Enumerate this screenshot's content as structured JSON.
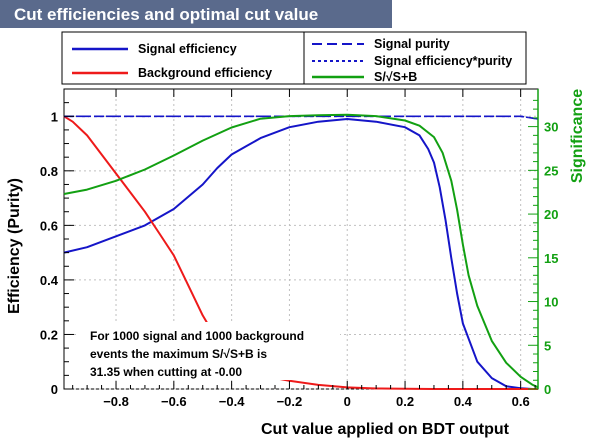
{
  "header": {
    "title": "Cut efficiencies and optimal cut value"
  },
  "legend": {
    "left": [
      "Signal efficiency",
      "Background efficiency"
    ],
    "right": [
      "Signal purity",
      "Signal efficiency*purity",
      "S/√S+B"
    ]
  },
  "annotation": {
    "line1": "For 1000 signal and 1000 background",
    "line2": "events the maximum S/√S+B is",
    "line3": "31.35 when cutting at -0.00"
  },
  "colors": {
    "signal_efficiency": "#1515c8",
    "background_efficiency": "#ee1a1a",
    "significance": "#12a012",
    "title_bar": "#5a6a8c"
  },
  "chart_data": {
    "type": "line",
    "title": "Cut efficiencies and optimal cut value",
    "xlabel": "Cut value applied on BDT output",
    "ylabel": "Efficiency (Purity)",
    "y2label": "Significance",
    "xlim": [
      -0.98,
      0.66
    ],
    "ylim": [
      0,
      1.1
    ],
    "y2lim": [
      0,
      34.3
    ],
    "xticks": [
      "−0.8",
      "−0.6",
      "−0.4",
      "−0.2",
      "0",
      "0.2",
      "0.4",
      "0.6"
    ],
    "yticks": [
      "0",
      "0.2",
      "0.4",
      "0.6",
      "0.8",
      "1"
    ],
    "y2ticks": [
      "0",
      "5",
      "10",
      "15",
      "20",
      "25",
      "30"
    ],
    "series": [
      {
        "name": "Signal efficiency",
        "axis": "left",
        "style": "solid",
        "x": [
          -0.98,
          -0.9,
          -0.8,
          -0.7,
          -0.6,
          -0.5,
          -0.45,
          -0.4,
          -0.35,
          -0.3,
          -0.2,
          -0.1,
          0.0,
          0.1,
          0.2,
          0.25,
          0.28,
          0.3,
          0.32,
          0.34,
          0.36,
          0.38,
          0.4,
          0.45,
          0.5,
          0.55,
          0.6,
          0.64,
          0.66
        ],
        "y": [
          0.5,
          0.52,
          0.56,
          0.6,
          0.66,
          0.75,
          0.81,
          0.86,
          0.89,
          0.92,
          0.96,
          0.98,
          0.99,
          0.98,
          0.96,
          0.93,
          0.88,
          0.83,
          0.74,
          0.62,
          0.48,
          0.35,
          0.24,
          0.1,
          0.04,
          0.01,
          0.003,
          0.0,
          0.0
        ]
      },
      {
        "name": "Background efficiency",
        "axis": "left",
        "style": "solid",
        "x": [
          -0.98,
          -0.95,
          -0.9,
          -0.85,
          -0.8,
          -0.75,
          -0.7,
          -0.65,
          -0.6,
          -0.55,
          -0.5,
          -0.45,
          -0.4,
          -0.35,
          -0.3,
          -0.25,
          -0.2,
          -0.1,
          0.0,
          0.1,
          0.2,
          0.3,
          0.4,
          0.5,
          0.66
        ],
        "y": [
          1.0,
          0.98,
          0.93,
          0.86,
          0.79,
          0.72,
          0.65,
          0.57,
          0.49,
          0.38,
          0.27,
          0.18,
          0.12,
          0.08,
          0.05,
          0.04,
          0.03,
          0.015,
          0.006,
          0.002,
          0.001,
          0.0,
          0.0,
          0.0,
          0.0
        ]
      },
      {
        "name": "Signal purity",
        "axis": "left",
        "style": "dashed",
        "x": [
          -0.98,
          -0.8,
          -0.6,
          -0.4,
          -0.2,
          0.0,
          0.2,
          0.4,
          0.6,
          0.66
        ],
        "y": [
          1.0,
          1.0,
          1.0,
          1.0,
          1.0,
          1.0,
          1.0,
          1.0,
          1.0,
          0.99
        ]
      },
      {
        "name": "Signal efficiency*purity",
        "axis": "left",
        "style": "dotted",
        "x": [
          -0.98,
          -0.8,
          -0.6,
          -0.4,
          -0.2,
          0.0,
          0.2,
          0.4,
          0.6,
          0.66
        ],
        "y": [
          1.0,
          1.0,
          1.0,
          1.0,
          1.0,
          1.0,
          1.0,
          1.0,
          1.0,
          0.99
        ]
      },
      {
        "name": "S/√S+B",
        "axis": "right",
        "style": "solid",
        "x": [
          -0.98,
          -0.9,
          -0.8,
          -0.7,
          -0.6,
          -0.5,
          -0.4,
          -0.3,
          -0.2,
          -0.1,
          0.0,
          0.1,
          0.2,
          0.25,
          0.3,
          0.33,
          0.36,
          0.38,
          0.4,
          0.42,
          0.45,
          0.5,
          0.55,
          0.6,
          0.64,
          0.66
        ],
        "y": [
          22.3,
          22.8,
          23.8,
          25.1,
          26.7,
          28.4,
          29.9,
          30.9,
          31.2,
          31.3,
          31.35,
          31.2,
          30.7,
          30.1,
          28.8,
          27.0,
          23.8,
          20.5,
          16.5,
          13.0,
          9.5,
          5.5,
          3.0,
          1.4,
          0.5,
          0.2
        ]
      }
    ]
  }
}
